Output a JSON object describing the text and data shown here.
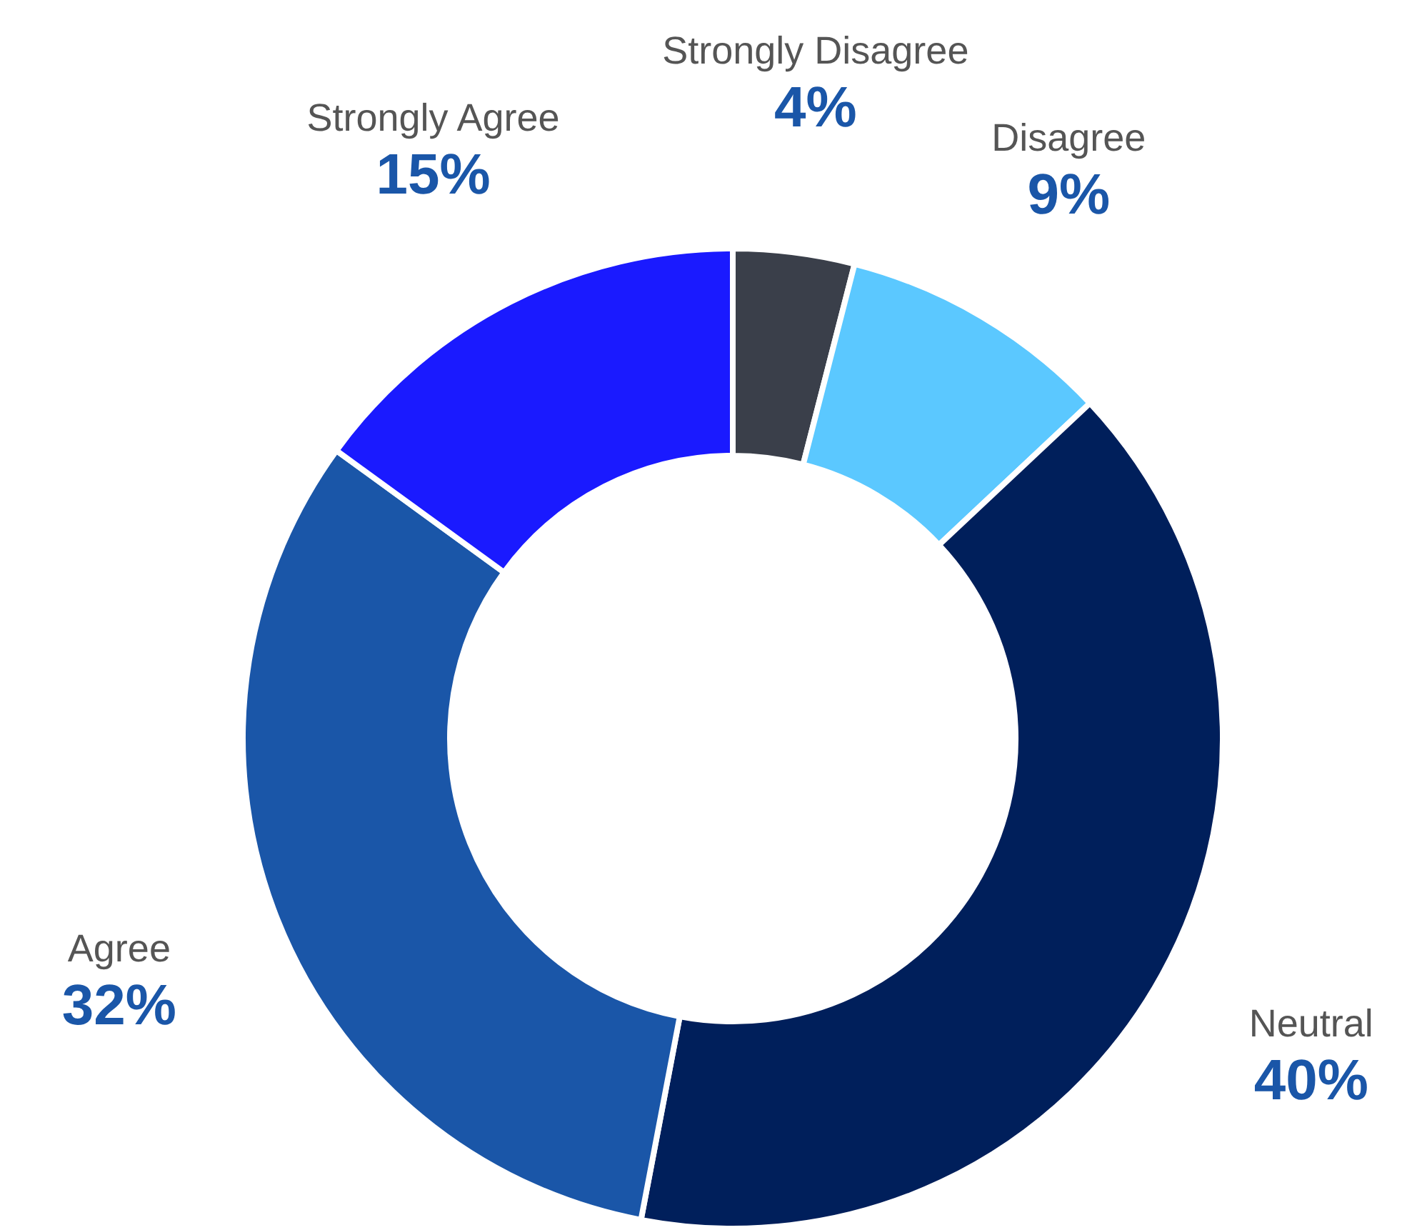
{
  "chart_data": {
    "type": "donut",
    "categories": [
      "Strongly Disagree",
      "Disagree",
      "Neutral",
      "Agree",
      "Strongly Agree"
    ],
    "values": [
      4,
      9,
      40,
      32,
      15
    ],
    "value_labels": [
      "4%",
      "9%",
      "40%",
      "32%",
      "15%"
    ],
    "colors": [
      "#3a3f4a",
      "#5bc8ff",
      "#001f5b",
      "#1a56a8",
      "#1a1aff"
    ]
  }
}
